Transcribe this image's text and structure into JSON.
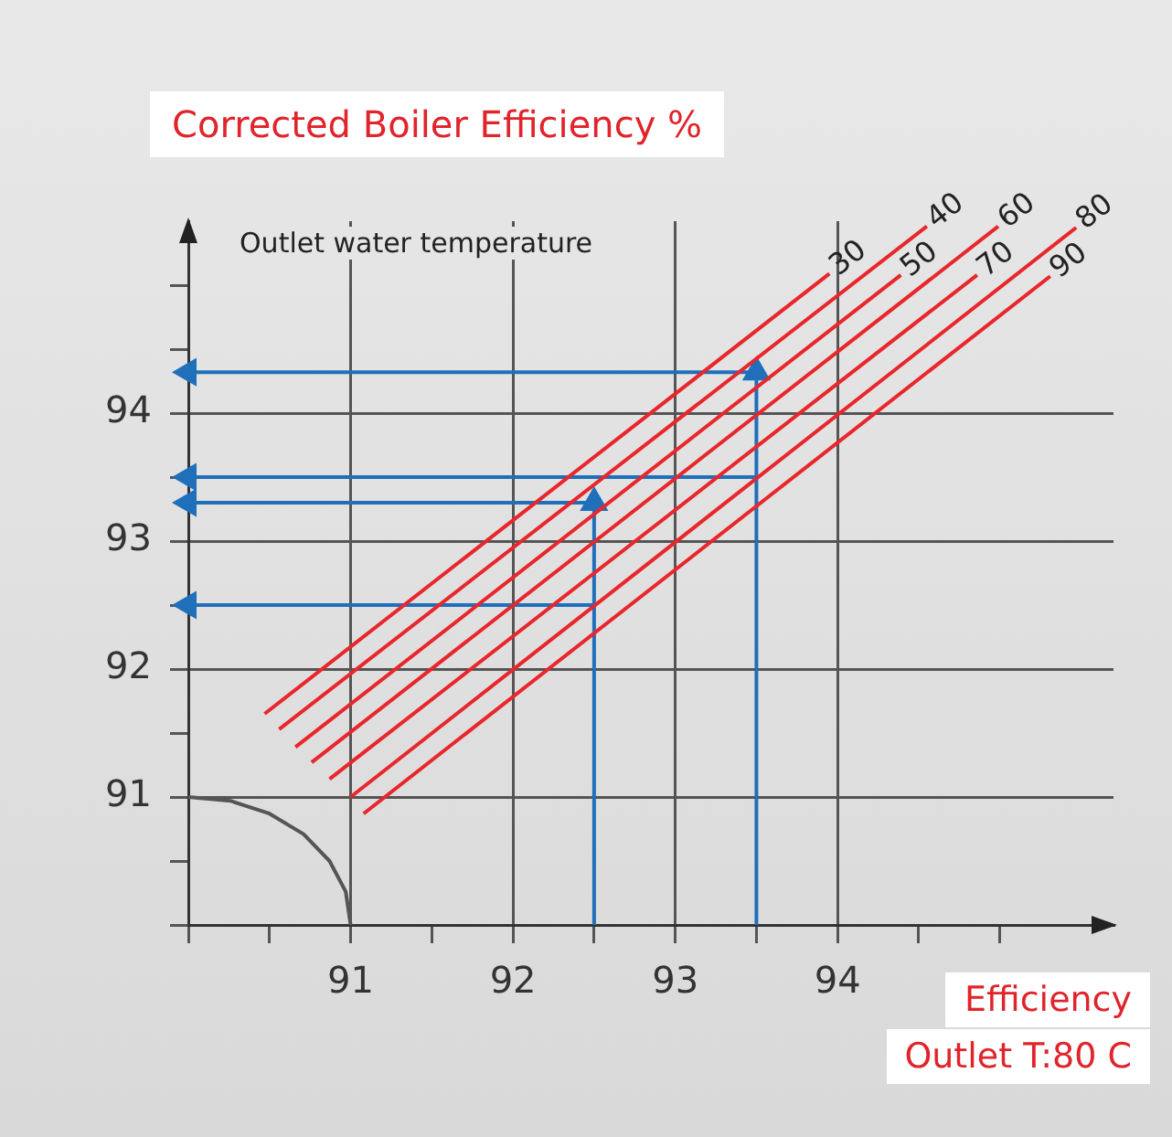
{
  "chart_data": {
    "type": "line",
    "title": "Corrected Boiler Efficiency %",
    "xlabel": "Efficiency\nOutlet T:80 C",
    "ylabel": "Outlet water temperature",
    "xlim": [
      90,
      95.7
    ],
    "ylim": [
      90,
      95.5
    ],
    "xticks": [
      {
        "value": 90,
        "label": null
      },
      {
        "value": 90.5,
        "label": null
      },
      91,
      {
        "value": 91.5,
        "label": null
      },
      92,
      {
        "value": 92.5,
        "label": null
      },
      93,
      {
        "value": 93.5,
        "label": null
      },
      94,
      {
        "value": 94.5,
        "label": null
      },
      {
        "value": 95,
        "label": null
      }
    ],
    "yticks": [
      {
        "value": 90,
        "label": null
      },
      {
        "value": 90.5,
        "label": null
      },
      91,
      {
        "value": 91.5,
        "label": null
      },
      92,
      {
        "value": 92.5,
        "label": null
      },
      93,
      {
        "value": 93.5,
        "label": null
      },
      94,
      {
        "value": 94.5,
        "label": null
      },
      {
        "value": 95,
        "label": null
      }
    ],
    "grid": true,
    "legend": false,
    "line_style": "solid",
    "series": [
      {
        "name": "30",
        "marker": "none",
        "color": "#e8262b",
        "x": [
          90.47,
          93.95
        ],
        "values": [
          91.65,
          95.09
        ]
      },
      {
        "name": "40",
        "marker": "none",
        "color": "#e8262b",
        "x": [
          90.56,
          94.55
        ],
        "values": [
          91.53,
          95.46
        ]
      },
      {
        "name": "50",
        "marker": "none",
        "color": "#e8262b",
        "x": [
          90.66,
          94.39
        ],
        "values": [
          91.39,
          95.08
        ]
      },
      {
        "name": "60",
        "marker": "none",
        "color": "#e8262b",
        "x": [
          90.76,
          94.99
        ],
        "values": [
          91.27,
          95.46
        ]
      },
      {
        "name": "70",
        "marker": "none",
        "color": "#e8262b",
        "x": [
          90.87,
          94.86
        ],
        "values": [
          91.14,
          95.08
        ]
      },
      {
        "name": "80",
        "marker": "none",
        "color": "#e8262b",
        "x": [
          91.0,
          95.47
        ],
        "values": [
          91.0,
          95.45
        ]
      },
      {
        "name": "90",
        "marker": "none",
        "color": "#e8262b",
        "x": [
          91.08,
          95.31
        ],
        "values": [
          90.87,
          95.07
        ]
      },
      {
        "marker": "triangle",
        "color": "#1f6fba",
        "x": [
          92.5,
          92.5,
          90
        ],
        "values": [
          90,
          93.3,
          93.3
        ]
      },
      {
        "marker": "triangle",
        "color": "#1f6fba",
        "x": [
          92.5,
          90
        ],
        "values": [
          92.5,
          92.5
        ]
      },
      {
        "marker": "triangle",
        "color": "#1f6fba",
        "x": [
          93.5,
          93.5,
          90
        ],
        "values": [
          90,
          94.32,
          94.32
        ]
      },
      {
        "marker": "triangle",
        "color": "#1f6fba",
        "x": [
          93.5,
          90
        ],
        "values": [
          93.5,
          93.5
        ]
      },
      {
        "marker": "none",
        "color": "#555555",
        "x": [
          90,
          90.26,
          90.5,
          90.71,
          90.87,
          90.97,
          91
        ],
        "values": [
          91,
          90.97,
          90.87,
          90.71,
          90.5,
          90.26,
          90
        ]
      }
    ]
  }
}
